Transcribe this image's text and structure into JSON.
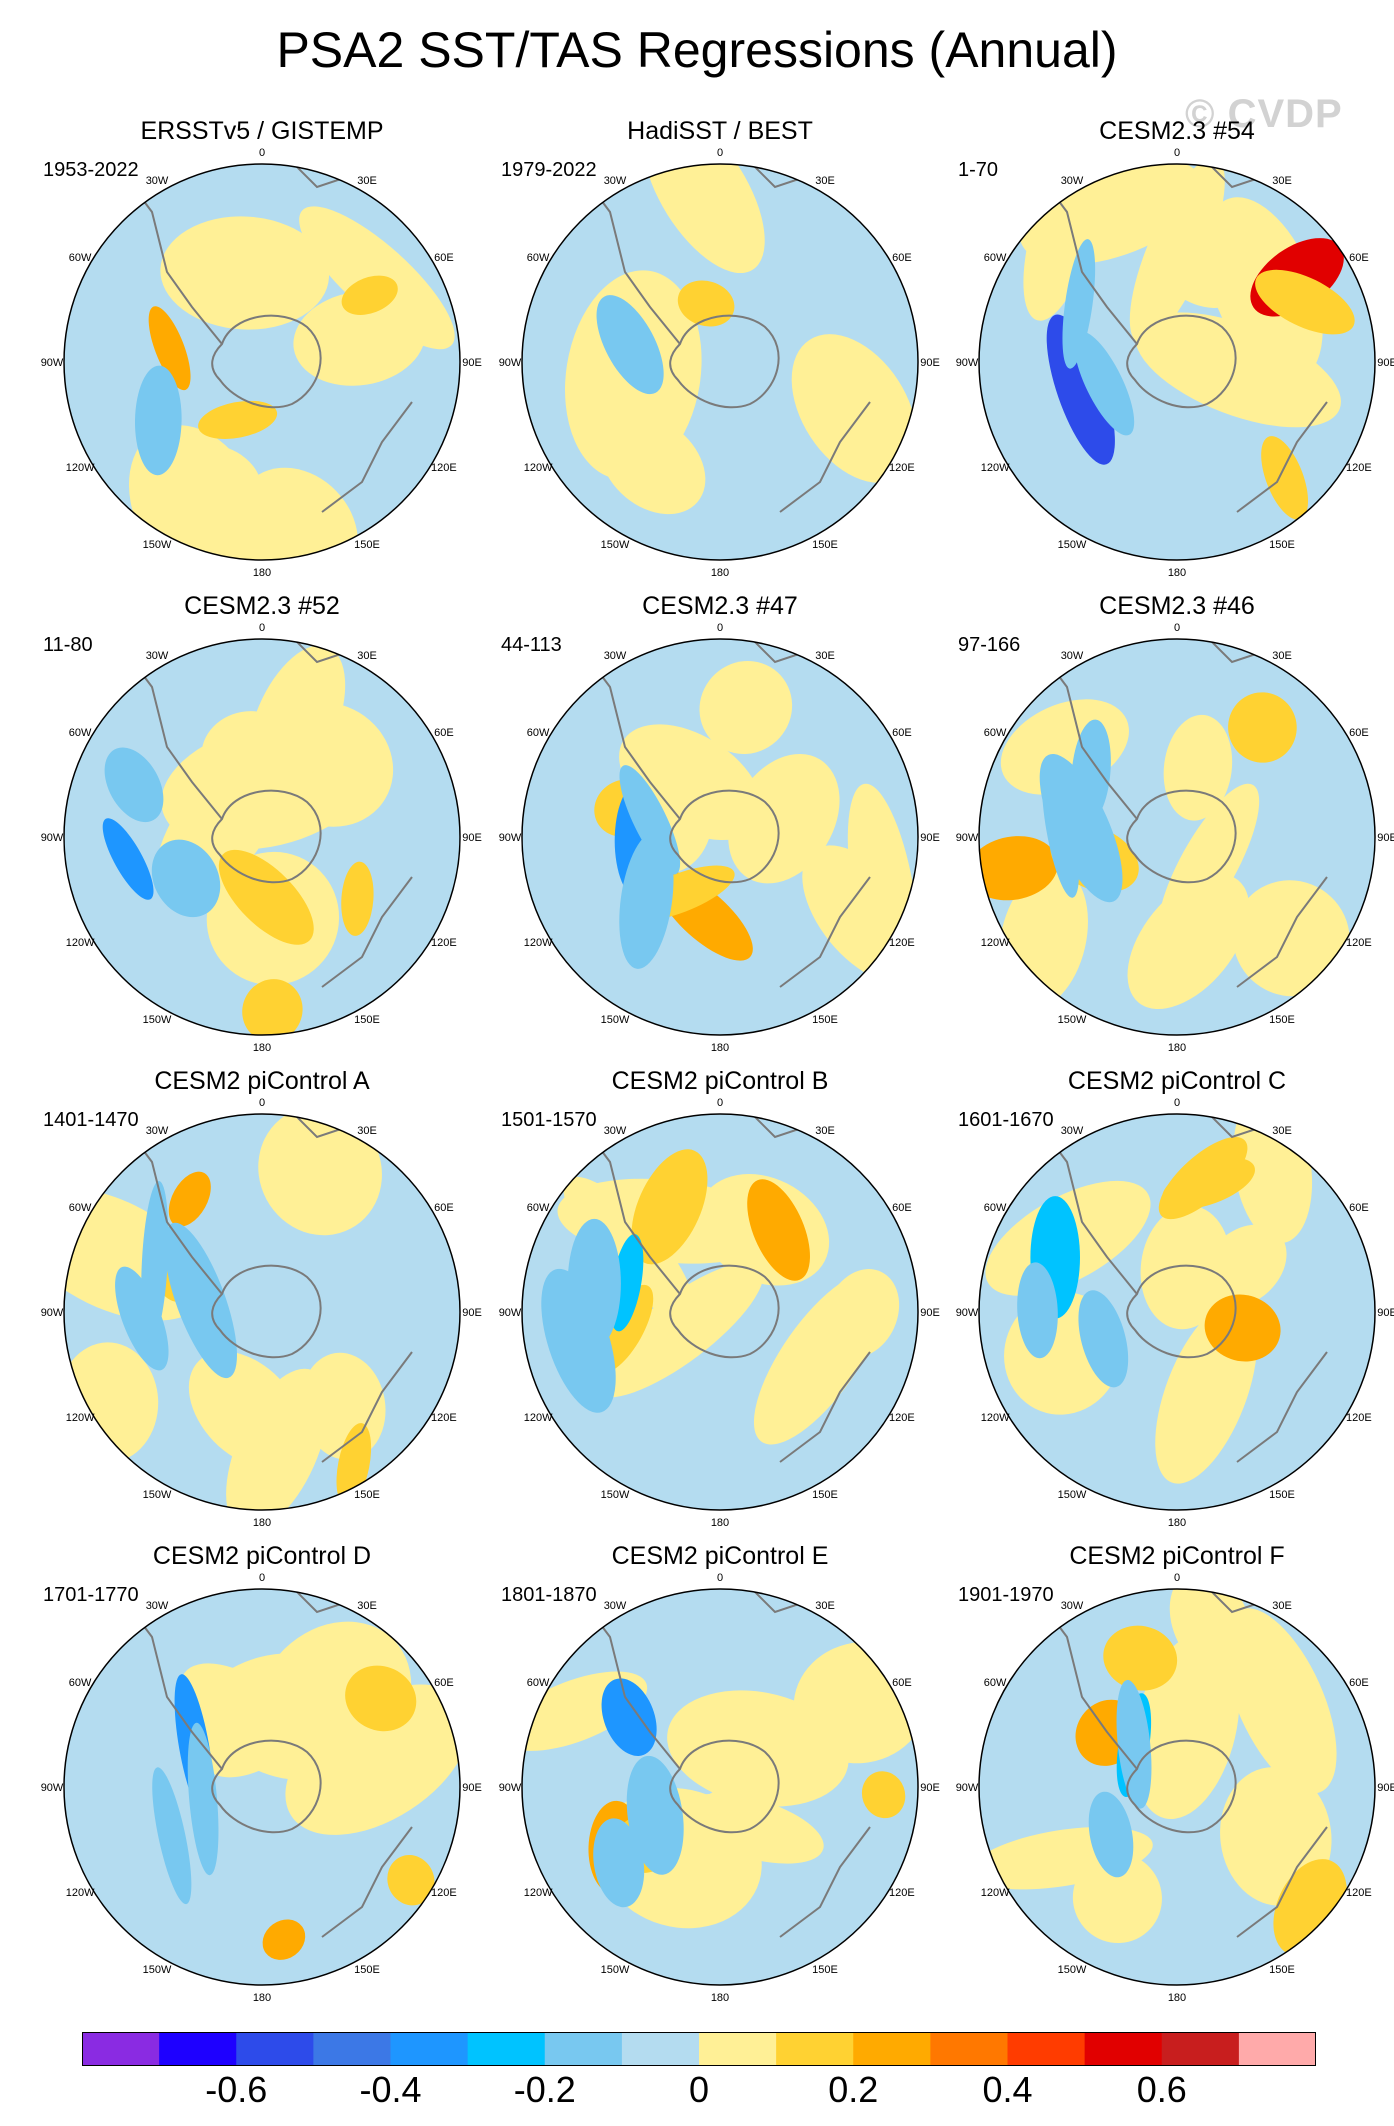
{
  "title": "PSA2 SST/TAS Regressions (Annual)",
  "watermark": "© CVDP",
  "colors": {
    "ocean": "#b4dcf0",
    "positive": "#fff096",
    "land": "#ffffff",
    "coast": "#7a7a7a",
    "palette": [
      "#8a2be2",
      "#1e00ff",
      "#2d4bea",
      "#3c78e6",
      "#1e96ff",
      "#00c3ff",
      "#78c8f0",
      "#b4dcf0",
      "#fff096",
      "#ffd232",
      "#ffaa00",
      "#ff7800",
      "#ff3c00",
      "#e10000",
      "#c81e1e",
      "#ffaaaa"
    ]
  },
  "colorbar": {
    "labels": [
      "-0.6",
      "-0.4",
      "-0.2",
      "0",
      "0.2",
      "0.4",
      "0.6"
    ]
  },
  "chart_data": [
    {
      "type": "heatmap",
      "panel": "ERSSTv5 / GISTEMP",
      "title": "ERSSTv5 / GISTEMP",
      "years": "1953-2022",
      "projection": "south-polar stereographic",
      "levels": [
        -0.7,
        -0.6,
        -0.5,
        -0.4,
        -0.3,
        -0.2,
        -0.1,
        0,
        0.1,
        0.2,
        0.3,
        0.4,
        0.5,
        0.6,
        0.7
      ],
      "longitude_labels": [
        "0",
        "30E",
        "60E",
        "90E",
        "120E",
        "150E",
        "180",
        "150W",
        "120W",
        "90W",
        "60W",
        "30W"
      ],
      "min": -0.1,
      "max": 0.3
    },
    {
      "type": "heatmap",
      "panel": "HadiSST / BEST",
      "title": "HadiSST / BEST",
      "years": "1979-2022",
      "projection": "south-polar stereographic",
      "levels": [
        -0.7,
        -0.6,
        -0.5,
        -0.4,
        -0.3,
        -0.2,
        -0.1,
        0,
        0.1,
        0.2,
        0.3,
        0.4,
        0.5,
        0.6,
        0.7
      ],
      "longitude_labels": [
        "0",
        "30E",
        "60E",
        "90E",
        "120E",
        "150E",
        "180",
        "150W",
        "120W",
        "90W",
        "60W",
        "30W"
      ],
      "min": -0.1,
      "max": 0.1
    },
    {
      "type": "heatmap",
      "panel": "CESM2.3 #54",
      "title": "CESM2.3 #54",
      "years": "1-70",
      "projection": "south-polar stereographic",
      "levels": [
        -0.7,
        -0.6,
        -0.5,
        -0.4,
        -0.3,
        -0.2,
        -0.1,
        0,
        0.1,
        0.2,
        0.3,
        0.4,
        0.5,
        0.6,
        0.7
      ],
      "longitude_labels": [
        "0",
        "30E",
        "60E",
        "90E",
        "120E",
        "150E",
        "180",
        "150W",
        "120W",
        "90W",
        "60W",
        "30W"
      ],
      "min": -0.6,
      "max": 0.6
    },
    {
      "type": "heatmap",
      "panel": "CESM2.3 #52",
      "title": "CESM2.3 #52",
      "years": "11-80",
      "projection": "south-polar stereographic",
      "levels": [
        -0.7,
        -0.6,
        -0.5,
        -0.4,
        -0.3,
        -0.2,
        -0.1,
        0,
        0.1,
        0.2,
        0.3,
        0.4,
        0.5,
        0.6,
        0.7
      ],
      "longitude_labels": [
        "0",
        "30E",
        "60E",
        "90E",
        "120E",
        "150E",
        "180",
        "150W",
        "120W",
        "90W",
        "60W",
        "30W"
      ],
      "min": -0.4,
      "max": 0.2
    },
    {
      "type": "heatmap",
      "panel": "CESM2.3 #47",
      "title": "CESM2.3 #47",
      "years": "44-113",
      "projection": "south-polar stereographic",
      "levels": [
        -0.7,
        -0.6,
        -0.5,
        -0.4,
        -0.3,
        -0.2,
        -0.1,
        0,
        0.1,
        0.2,
        0.3,
        0.4,
        0.5,
        0.6,
        0.7
      ],
      "longitude_labels": [
        "0",
        "30E",
        "60E",
        "90E",
        "120E",
        "150E",
        "180",
        "150W",
        "120W",
        "90W",
        "60W",
        "30W"
      ],
      "min": -0.4,
      "max": 0.3
    },
    {
      "type": "heatmap",
      "panel": "CESM2.3 #46",
      "title": "CESM2.3 #46",
      "years": "97-166",
      "projection": "south-polar stereographic",
      "levels": [
        -0.7,
        -0.6,
        -0.5,
        -0.4,
        -0.3,
        -0.2,
        -0.1,
        0,
        0.1,
        0.2,
        0.3,
        0.4,
        0.5,
        0.6,
        0.7
      ],
      "longitude_labels": [
        "0",
        "30E",
        "60E",
        "90E",
        "120E",
        "150E",
        "180",
        "150W",
        "120W",
        "90W",
        "60W",
        "30W"
      ],
      "min": -0.2,
      "max": 0.3
    },
    {
      "type": "heatmap",
      "panel": "CESM2 piControl A",
      "title": "CESM2 piControl A",
      "years": "1401-1470",
      "projection": "south-polar stereographic",
      "levels": [
        -0.7,
        -0.6,
        -0.5,
        -0.4,
        -0.3,
        -0.2,
        -0.1,
        0,
        0.1,
        0.2,
        0.3,
        0.4,
        0.5,
        0.6,
        0.7
      ],
      "longitude_labels": [
        "0",
        "30E",
        "60E",
        "90E",
        "120E",
        "150E",
        "180",
        "150W",
        "120W",
        "90W",
        "60W",
        "30W"
      ],
      "min": -0.2,
      "max": 0.3
    },
    {
      "type": "heatmap",
      "panel": "CESM2 piControl B",
      "title": "CESM2 piControl B",
      "years": "1501-1570",
      "projection": "south-polar stereographic",
      "levels": [
        -0.7,
        -0.6,
        -0.5,
        -0.4,
        -0.3,
        -0.2,
        -0.1,
        0,
        0.1,
        0.2,
        0.3,
        0.4,
        0.5,
        0.6,
        0.7
      ],
      "longitude_labels": [
        "0",
        "30E",
        "60E",
        "90E",
        "120E",
        "150E",
        "180",
        "150W",
        "120W",
        "90W",
        "60W",
        "30W"
      ],
      "min": -0.3,
      "max": 0.3
    },
    {
      "type": "heatmap",
      "panel": "CESM2 piControl C",
      "title": "CESM2 piControl C",
      "years": "1601-1670",
      "projection": "south-polar stereographic",
      "levels": [
        -0.7,
        -0.6,
        -0.5,
        -0.4,
        -0.3,
        -0.2,
        -0.1,
        0,
        0.1,
        0.2,
        0.3,
        0.4,
        0.5,
        0.6,
        0.7
      ],
      "longitude_labels": [
        "0",
        "30E",
        "60E",
        "90E",
        "120E",
        "150E",
        "180",
        "150W",
        "120W",
        "90W",
        "60W",
        "30W"
      ],
      "min": -0.3,
      "max": 0.3
    },
    {
      "type": "heatmap",
      "panel": "CESM2 piControl D",
      "title": "CESM2 piControl D",
      "years": "1701-1770",
      "projection": "south-polar stereographic",
      "levels": [
        -0.7,
        -0.6,
        -0.5,
        -0.4,
        -0.3,
        -0.2,
        -0.1,
        0,
        0.1,
        0.2,
        0.3,
        0.4,
        0.5,
        0.6,
        0.7
      ],
      "longitude_labels": [
        "0",
        "30E",
        "60E",
        "90E",
        "120E",
        "150E",
        "180",
        "150W",
        "120W",
        "90W",
        "60W",
        "30W"
      ],
      "min": -0.4,
      "max": 0.3
    },
    {
      "type": "heatmap",
      "panel": "CESM2 piControl E",
      "title": "CESM2 piControl E",
      "years": "1801-1870",
      "projection": "south-polar stereographic",
      "levels": [
        -0.7,
        -0.6,
        -0.5,
        -0.4,
        -0.3,
        -0.2,
        -0.1,
        0,
        0.1,
        0.2,
        0.3,
        0.4,
        0.5,
        0.6,
        0.7
      ],
      "longitude_labels": [
        "0",
        "30E",
        "60E",
        "90E",
        "120E",
        "150E",
        "180",
        "150W",
        "120W",
        "90W",
        "60W",
        "30W"
      ],
      "min": -0.4,
      "max": 0.3
    },
    {
      "type": "heatmap",
      "panel": "CESM2 piControl F",
      "title": "CESM2 piControl F",
      "years": "1901-1970",
      "projection": "south-polar stereographic",
      "levels": [
        -0.7,
        -0.6,
        -0.5,
        -0.4,
        -0.3,
        -0.2,
        -0.1,
        0,
        0.1,
        0.2,
        0.3,
        0.4,
        0.5,
        0.6,
        0.7
      ],
      "longitude_labels": [
        "0",
        "30E",
        "60E",
        "90E",
        "120E",
        "150E",
        "180",
        "150W",
        "120W",
        "90W",
        "60W",
        "30W"
      ],
      "min": -0.3,
      "max": 0.3
    }
  ]
}
